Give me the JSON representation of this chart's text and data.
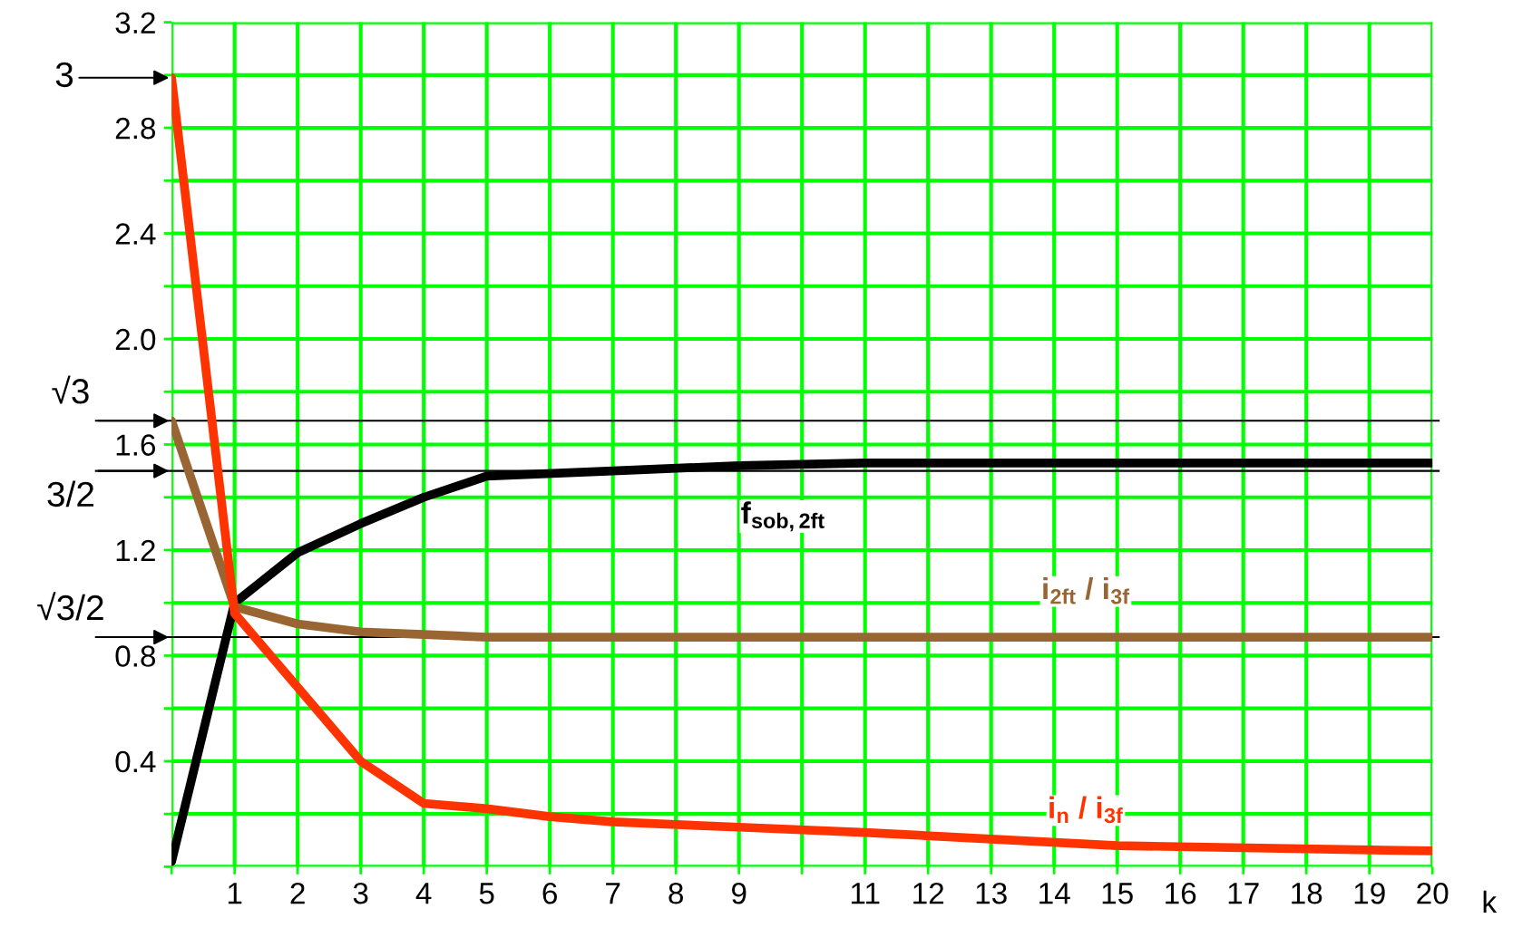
{
  "chart_data": {
    "type": "line",
    "xlabel": "k",
    "series": [
      {
        "name": "f$_{sob,2ft}$",
        "color": "#000000",
        "x": [
          0,
          1,
          2,
          3,
          4,
          5,
          7,
          9,
          11,
          20
        ],
        "values": [
          0.02,
          1.0,
          1.19,
          1.3,
          1.4,
          1.48,
          1.5,
          1.52,
          1.53,
          1.53
        ]
      },
      {
        "name": "i$_{2ft}$ / i$_{3f}$",
        "color": "#996633",
        "x": [
          0,
          1,
          2,
          3,
          4,
          5,
          6,
          20
        ],
        "values": [
          1.69,
          0.985,
          0.92,
          0.89,
          0.88,
          0.87,
          0.87,
          0.87
        ]
      },
      {
        "name": "i$_{n}$ / i$_{3f}$",
        "color": "#ff3300",
        "x": [
          0,
          1,
          2,
          3,
          4,
          5,
          6,
          7,
          9,
          11,
          15,
          20
        ],
        "values": [
          2.99,
          0.96,
          0.68,
          0.4,
          0.24,
          0.22,
          0.19,
          0.17,
          0.15,
          0.13,
          0.08,
          0.06
        ]
      }
    ],
    "xlim": [
      0,
      20
    ],
    "xticks": [
      {
        "value": 0,
        "label": null
      },
      1,
      2,
      3,
      4,
      5,
      6,
      7,
      8,
      9,
      {
        "value": 10,
        "label": null
      },
      11,
      12,
      13,
      14,
      15,
      16,
      17,
      18,
      19,
      20
    ],
    "ylim": [
      0,
      3.2
    ],
    "yticks": [
      {
        "value": 0,
        "label": null
      },
      {
        "value": 0.2,
        "label": null
      },
      {
        "value": 0.4,
        "label": "0.4"
      },
      {
        "value": 0.6,
        "label": null
      },
      {
        "value": 0.8,
        "label": "0.8"
      },
      {
        "value": 1.0,
        "label": null
      },
      {
        "value": 1.2,
        "label": "1.2"
      },
      {
        "value": 1.4,
        "label": null
      },
      {
        "value": 1.6,
        "label": "1.6"
      },
      {
        "value": 1.8,
        "label": null
      },
      {
        "value": 2.0,
        "label": "2.0"
      },
      {
        "value": 2.2,
        "label": null
      },
      {
        "value": 2.4,
        "label": "2.4"
      },
      {
        "value": 2.6,
        "label": null
      },
      {
        "value": 2.8,
        "label": "2.8"
      },
      {
        "value": 3.0,
        "label": null
      },
      {
        "value": 3.2,
        "label": "3.2"
      }
    ],
    "grid": true,
    "marker": "none",
    "line_style": "solid",
    "ref_lines": [
      {
        "axis": "y",
        "value": 1.69,
        "label": "√3",
        "color": "#000000"
      },
      {
        "axis": "y",
        "value": 1.5,
        "label": "3/2",
        "color": "#000000"
      },
      {
        "axis": "y",
        "value": 0.87,
        "label": "√3/2",
        "color": "#000000"
      }
    ],
    "annotations": [
      {
        "text": "3",
        "x": 0,
        "y": 2.99
      }
    ]
  }
}
